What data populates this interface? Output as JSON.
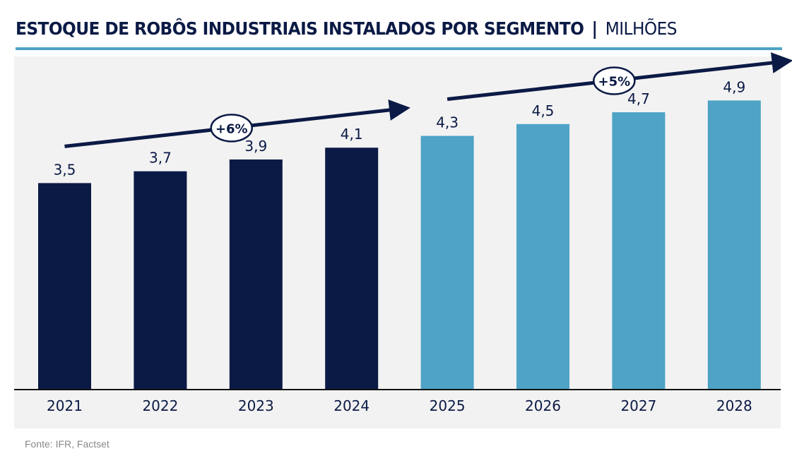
{
  "title": {
    "main": "ESTOQUE DE ROBÔS INDUSTRIAIS INSTALADOS POR SEGMENTO",
    "separator": "|",
    "unit": "MILHÕES"
  },
  "source": "Fonte: IFR, Factset",
  "colors": {
    "title": "#0b1a45",
    "accent_rule": "#4ea3c6",
    "historical_bar": "#0b1a45",
    "projected_bar": "#4ea3c6",
    "panel_background": "#f2f2f2"
  },
  "chart_data": {
    "type": "bar",
    "title": "ESTOQUE DE ROBÔS INDUSTRIAIS INSTALADOS POR SEGMENTO | MILHÕES",
    "xlabel": "",
    "ylabel": "",
    "unit": "milhões",
    "categories": [
      "2021",
      "2022",
      "2023",
      "2024",
      "2025",
      "2026",
      "2027",
      "2028"
    ],
    "values": [
      3.5,
      3.7,
      3.9,
      4.1,
      4.3,
      4.5,
      4.7,
      4.9
    ],
    "value_labels": [
      "3,5",
      "3,7",
      "3,9",
      "4,1",
      "4,3",
      "4,5",
      "4,7",
      "4,9"
    ],
    "segments": [
      "historical",
      "historical",
      "historical",
      "historical",
      "projected",
      "projected",
      "projected",
      "projected"
    ],
    "ylim": [
      0,
      5.5
    ],
    "grid": false,
    "legend": "none",
    "annotations": [
      {
        "label": "+6%",
        "from_category": "2021",
        "to_category": "2024",
        "type": "growth-arrow"
      },
      {
        "label": "+5%",
        "from_category": "2025",
        "to_category": "2028",
        "type": "growth-arrow"
      }
    ]
  }
}
